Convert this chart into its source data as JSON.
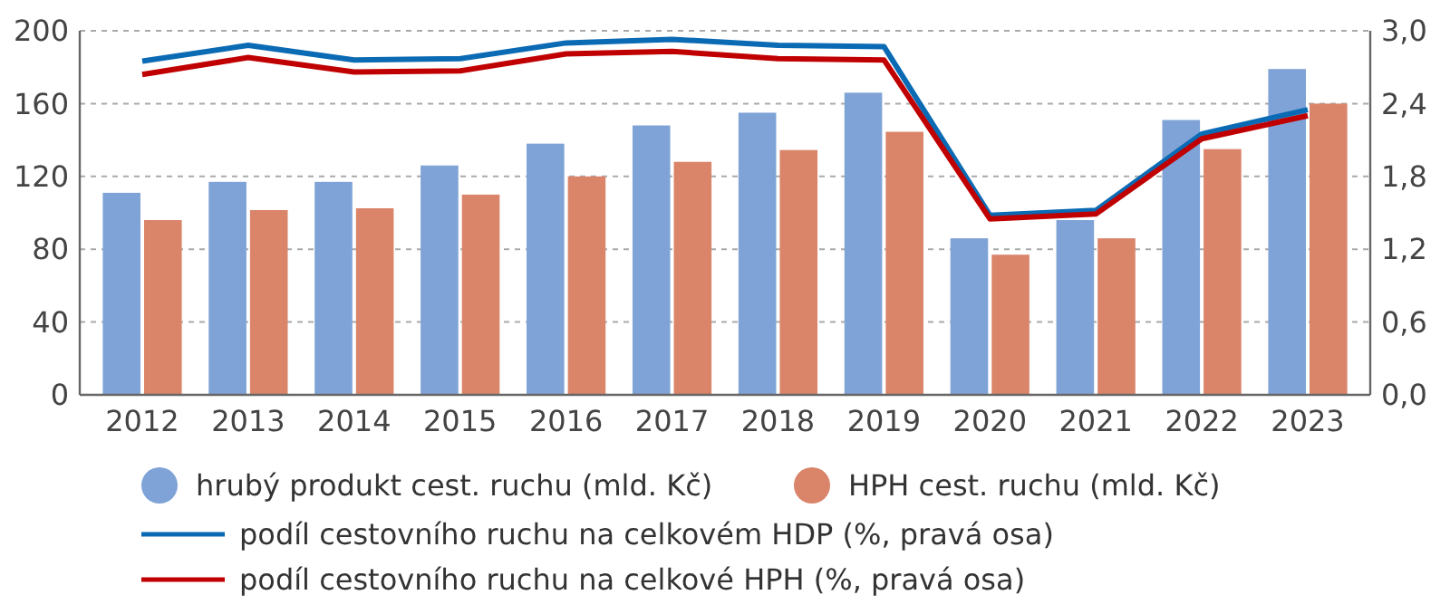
{
  "chart_data": {
    "type": "bar",
    "categories": [
      "2012",
      "2013",
      "2014",
      "2015",
      "2016",
      "2017",
      "2018",
      "2019",
      "2020",
      "2021",
      "2022",
      "2023"
    ],
    "series": [
      {
        "name": "hrubý produkt cest. ruchu (mld. Kč)",
        "color": "#7fa3d6",
        "values": [
          111,
          117,
          117,
          126,
          138,
          148,
          155,
          166,
          86,
          96,
          151,
          179
        ]
      },
      {
        "name": "HPH cest. ruchu (mld. Kč)",
        "color": "#da846a",
        "values": [
          96,
          101.5,
          102.5,
          110,
          120,
          128,
          134.5,
          144.5,
          77,
          86,
          135,
          160
        ]
      },
      {
        "name": "podíl cestovního ruchu na celkovém HDP (%, pravá osa)",
        "type": "line",
        "axis": "y2",
        "color": "#0a6ab4",
        "values": [
          2.75,
          2.88,
          2.76,
          2.77,
          2.9,
          2.93,
          2.88,
          2.87,
          1.48,
          1.52,
          2.15,
          2.35
        ]
      },
      {
        "name": "podíl cestovního ruchu na celkové HPH (%, pravá osa)",
        "type": "line",
        "axis": "y2",
        "color": "#c00000",
        "values": [
          2.64,
          2.78,
          2.66,
          2.67,
          2.81,
          2.83,
          2.77,
          2.76,
          1.45,
          1.49,
          2.11,
          2.3
        ]
      }
    ],
    "ylim": [
      0,
      200
    ],
    "yticks": [
      0,
      40,
      80,
      120,
      160,
      200
    ],
    "y2lim": [
      0,
      3
    ],
    "y2ticks": [
      {
        "value": 0,
        "label": "0,0"
      },
      {
        "value": 0.6,
        "label": "0,6"
      },
      {
        "value": 1.2,
        "label": "1,2"
      },
      {
        "value": 1.8,
        "label": "1,8"
      },
      {
        "value": 2.4,
        "label": "2,4"
      },
      {
        "value": 3,
        "label": "3,0"
      }
    ],
    "grid": "y",
    "legend": "bottom",
    "marker": "none",
    "line_style": "solid"
  }
}
